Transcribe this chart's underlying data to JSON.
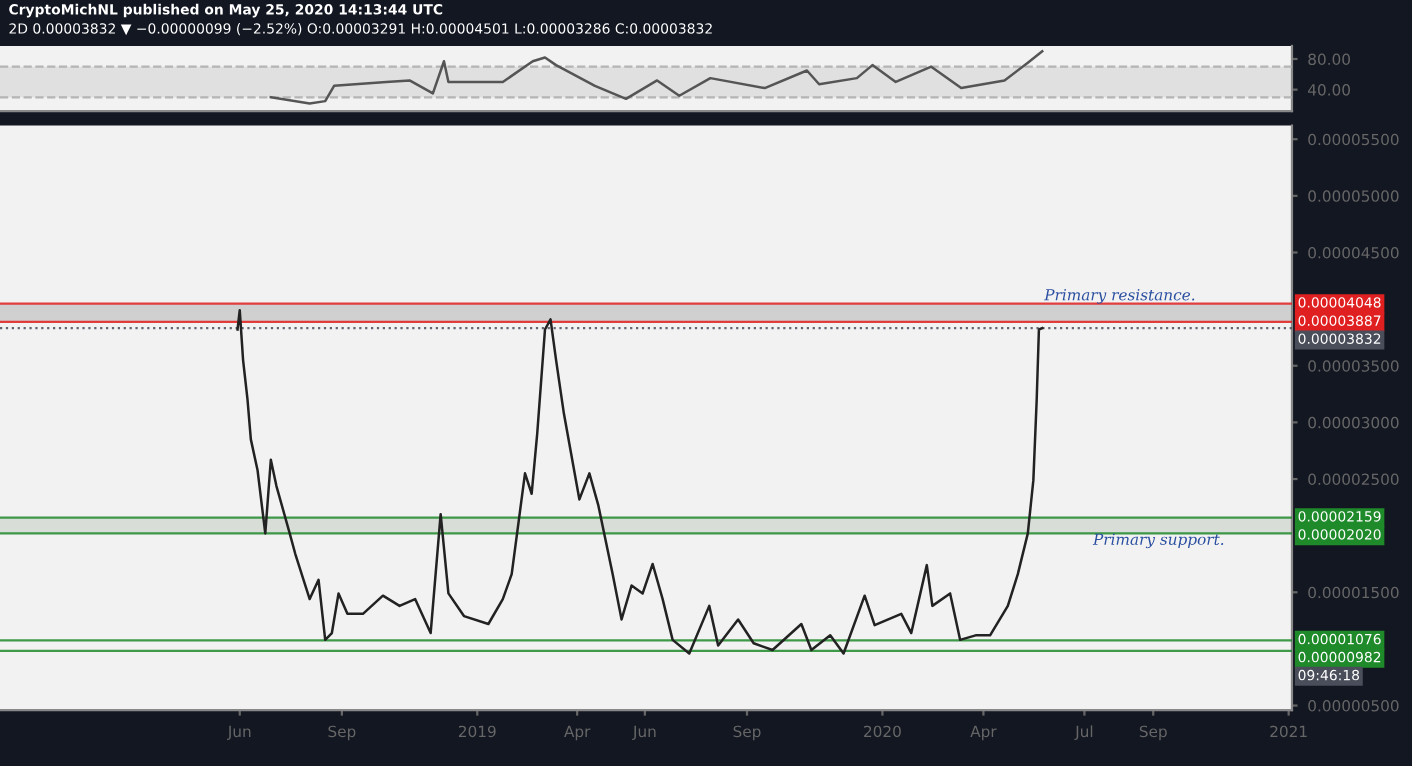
{
  "chart_data": [
    {
      "type": "line",
      "title": "CryptoMichNL published on May 25, 2020 14:13:44 UTC",
      "subtitle": "2D 0.00003832 ▼ −0.00000099 (−2.52%) O:0.00003291 H:0.00004501 L:0.00003286 C:0.00003832",
      "x": [
        "2018-06-29",
        "2018-08-03",
        "2018-08-17",
        "2018-08-25",
        "2018-10-11",
        "2018-11-01",
        "2018-11-22",
        "2018-12-02",
        "2018-12-06",
        "2019-01-24",
        "2019-02-20",
        "2019-03-03",
        "2019-03-13",
        "2019-04-17",
        "2019-05-15",
        "2019-06-12",
        "2019-07-02",
        "2019-07-30",
        "2019-09-17",
        "2019-10-25",
        "2019-11-05",
        "2019-12-09",
        "2019-12-23",
        "2020-01-13",
        "2020-02-14",
        "2020-03-12",
        "2020-04-20",
        "2020-05-11",
        "2020-05-24"
      ],
      "series": [
        {
          "color": "#555555",
          "values": [
            30,
            22,
            25,
            45,
            50,
            52,
            35,
            77,
            50,
            50,
            77,
            82,
            72,
            45,
            28,
            52,
            32,
            55,
            42,
            65,
            47,
            55,
            72,
            50,
            70,
            42,
            52,
            75,
            90
          ]
        }
      ],
      "xlim": [
        "2017-10-28",
        "2021-01-04"
      ],
      "ylim": [
        12,
        97
      ],
      "yticks": [
        {
          "value": 40,
          "label": "40.00"
        },
        {
          "value": 80,
          "label": "80.00"
        }
      ],
      "bands": [
        {
          "axis": "y",
          "from": 30,
          "to": 70,
          "color": "#e0e0e0"
        }
      ],
      "ref_lines": [
        {
          "axis": "y",
          "value": 30,
          "color": "#aaaaaa",
          "line_style": "dashed"
        },
        {
          "axis": "y",
          "value": 70,
          "color": "#aaaaaa",
          "line_style": "dashed"
        }
      ],
      "tick_labels": "y",
      "marker": "none",
      "line_style": "solid"
    },
    {
      "type": "line",
      "x": [
        "2018-05-30",
        "2018-06-01",
        "2018-06-04",
        "2018-06-08",
        "2018-06-11",
        "2018-06-17",
        "2018-06-24",
        "2018-06-29",
        "2018-07-04",
        "2018-07-16",
        "2018-07-21",
        "2018-08-03",
        "2018-08-11",
        "2018-08-17",
        "2018-08-23",
        "2018-08-29",
        "2018-09-06",
        "2018-09-20",
        "2018-10-08",
        "2018-10-23",
        "2018-11-06",
        "2018-11-20",
        "2018-11-29",
        "2018-12-06",
        "2018-12-20",
        "2019-01-11",
        "2019-01-24",
        "2019-02-01",
        "2019-02-13",
        "2019-02-19",
        "2019-02-24",
        "2019-03-03",
        "2019-03-08",
        "2019-03-13",
        "2019-03-20",
        "2019-04-03",
        "2019-04-12",
        "2019-04-20",
        "2019-05-03",
        "2019-05-11",
        "2019-05-20",
        "2019-05-30",
        "2019-06-08",
        "2019-06-17",
        "2019-06-26",
        "2019-07-11",
        "2019-07-29",
        "2019-08-06",
        "2019-08-24",
        "2019-09-07",
        "2019-09-24",
        "2019-10-20",
        "2019-10-29",
        "2019-11-15",
        "2019-11-27",
        "2019-12-16",
        "2019-12-25",
        "2020-01-18",
        "2020-01-27",
        "2020-02-10",
        "2020-02-15",
        "2020-03-02",
        "2020-03-11",
        "2020-03-25",
        "2020-04-07",
        "2020-04-23",
        "2020-05-02",
        "2020-05-11",
        "2020-05-16",
        "2020-05-19",
        "2020-05-21",
        "2020-05-24"
      ],
      "series": [
        {
          "color": "#222222",
          "values": [
            3.82e-05,
            3.99e-05,
            3.55e-05,
            3.2e-05,
            2.85e-05,
            2.58e-05,
            2.02e-05,
            2.67e-05,
            2.44e-05,
            2.02e-05,
            1.84e-05,
            1.44e-05,
            1.61e-05,
            1.08e-05,
            1.14e-05,
            1.49e-05,
            1.31e-05,
            1.31e-05,
            1.47e-05,
            1.38e-05,
            1.44e-05,
            1.14e-05,
            2.19e-05,
            1.49e-05,
            1.29e-05,
            1.22e-05,
            1.44e-05,
            1.66e-05,
            2.55e-05,
            2.37e-05,
            2.9e-05,
            3.82e-05,
            3.91e-05,
            3.55e-05,
            3.08e-05,
            2.32e-05,
            2.55e-05,
            2.27e-05,
            1.66e-05,
            1.26e-05,
            1.56e-05,
            1.49e-05,
            1.75e-05,
            1.44e-05,
            1.08e-05,
            9.6e-06,
            1.38e-05,
            1.03e-05,
            1.26e-05,
            1.05e-05,
            9.9e-06,
            1.22e-05,
            9.9e-06,
            1.12e-05,
            9.6e-06,
            1.47e-05,
            1.21e-05,
            1.31e-05,
            1.14e-05,
            1.74e-05,
            1.38e-05,
            1.49e-05,
            1.08e-05,
            1.12e-05,
            1.12e-05,
            1.38e-05,
            1.66e-05,
            2.02e-05,
            2.49e-05,
            3.2e-05,
            3.82e-05,
            3.832e-05
          ]
        }
      ],
      "xlim": [
        "2017-10-28",
        "2021-01-04"
      ],
      "ylim": [
        4.6e-06,
        5.62e-05
      ],
      "xticks": [
        {
          "value": "2018-06-01",
          "label": "Jun"
        },
        {
          "value": "2018-09-01",
          "label": "Sep"
        },
        {
          "value": "2019-01-01",
          "label": "2019"
        },
        {
          "value": "2019-04-01",
          "label": "Apr"
        },
        {
          "value": "2019-06-01",
          "label": "Jun"
        },
        {
          "value": "2019-09-01",
          "label": "Sep"
        },
        {
          "value": "2020-01-01",
          "label": "2020"
        },
        {
          "value": "2020-04-01",
          "label": "Apr"
        },
        {
          "value": "2020-07-01",
          "label": "Jul"
        },
        {
          "value": "2020-09-01",
          "label": "Sep"
        },
        {
          "value": "2021-01-01",
          "label": "2021"
        }
      ],
      "yticks": [
        {
          "value": 5e-06,
          "label": "0.00000500"
        },
        {
          "value": 1.5e-05,
          "label": "0.00001500"
        },
        {
          "value": 2.5e-05,
          "label": "0.00002500"
        },
        {
          "value": 3e-05,
          "label": "0.00003000"
        },
        {
          "value": 3.5e-05,
          "label": "0.00003500"
        },
        {
          "value": 4.5e-05,
          "label": "0.00004500"
        },
        {
          "value": 5e-05,
          "label": "0.00005000"
        },
        {
          "value": 5.5e-05,
          "label": "0.00005500"
        }
      ],
      "bands": [
        {
          "axis": "y",
          "from": 3.887e-05,
          "to": 4.048e-05,
          "color": "#d0d0d0"
        },
        {
          "axis": "y",
          "from": 2.02e-05,
          "to": 2.159e-05,
          "color": "#d8ddd8"
        }
      ],
      "ref_lines": [
        {
          "axis": "y",
          "value": 4.048e-05,
          "label": "0.00004048",
          "color": "#e02020",
          "line_style": "solid"
        },
        {
          "axis": "y",
          "value": 3.887e-05,
          "label": "0.00003887",
          "color": "#e02020",
          "line_style": "solid"
        },
        {
          "axis": "y",
          "value": 3.832e-05,
          "label": "0.00003832",
          "color": "#4a4e5a",
          "line_style": "dotted"
        },
        {
          "axis": "y",
          "value": 2.159e-05,
          "label": "0.00002159",
          "color": "#1f8a2a",
          "line_style": "solid"
        },
        {
          "axis": "y",
          "value": 2.02e-05,
          "label": "0.00002020",
          "color": "#1f8a2a",
          "line_style": "solid"
        },
        {
          "axis": "y",
          "value": 1.076e-05,
          "label": "0.00001076",
          "color": "#1f8a2a",
          "line_style": "solid"
        },
        {
          "axis": "y",
          "value": 9.82e-06,
          "label": "0.00000982",
          "color": "#1f8a2a",
          "line_style": "solid"
        }
      ],
      "annotations": [
        {
          "text": "Primary resistance.",
          "x": "2020-08-02",
          "y": 4.048e-05
        },
        {
          "text": "Primary support.",
          "x": "2020-09-06",
          "y": 2.02e-05
        },
        "09:46:18"
      ],
      "marker": "none",
      "line_style": "solid"
    }
  ]
}
